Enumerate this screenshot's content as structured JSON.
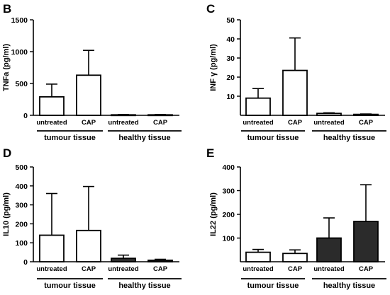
{
  "chart_data": [
    {
      "panel": "B",
      "type": "bar",
      "ylabel": "TNFa (pg/ml)",
      "ylim": [
        0,
        1500
      ],
      "yticks": [
        0,
        500,
        1000,
        1500
      ],
      "categories": [
        "untreated",
        "CAP",
        "untreated",
        "CAP"
      ],
      "values": [
        290,
        630,
        8,
        8
      ],
      "errors": [
        200,
        390,
        4,
        4
      ],
      "fills": [
        "#ffffff",
        "#ffffff",
        "#ffffff",
        "#ffffff"
      ],
      "groups": [
        "tumour tissue",
        "healthy tissue"
      ]
    },
    {
      "panel": "C",
      "type": "bar",
      "ylabel": "INF γ (pg/ml)",
      "ylim": [
        0,
        50
      ],
      "yticks": [
        10,
        20,
        30,
        40,
        50
      ],
      "categories": [
        "untreated",
        "CAP",
        "untreated",
        "CAP"
      ],
      "values": [
        9,
        23.5,
        1,
        0.5
      ],
      "errors": [
        5,
        17,
        0.3,
        0.2
      ],
      "fills": [
        "#ffffff",
        "#ffffff",
        "#ffffff",
        "#ffffff"
      ],
      "groups": [
        "tumour tissue",
        "healthy tissue"
      ]
    },
    {
      "panel": "D",
      "type": "bar",
      "ylabel": "IL10 (pg/ml)",
      "ylim": [
        0,
        500
      ],
      "yticks": [
        0,
        100,
        200,
        300,
        400,
        500
      ],
      "categories": [
        "untreated",
        "CAP",
        "untreated",
        "CAP"
      ],
      "values": [
        140,
        165,
        18,
        8
      ],
      "errors": [
        220,
        232,
        17,
        5
      ],
      "fills": [
        "#ffffff",
        "#ffffff",
        "#2b2b2b",
        "#2b2b2b"
      ],
      "groups": [
        "tumour tissue",
        "healthy tissue"
      ]
    },
    {
      "panel": "E",
      "type": "bar",
      "ylabel": "IL22 (pg/ml)",
      "ylim": [
        0,
        400
      ],
      "yticks": [
        100,
        200,
        300,
        400
      ],
      "categories": [
        "untreated",
        "CAP",
        "untreated",
        "CAP"
      ],
      "values": [
        40,
        35,
        100,
        170
      ],
      "errors": [
        12,
        15,
        85,
        155
      ],
      "fills": [
        "#ffffff",
        "#ffffff",
        "#2b2b2b",
        "#2b2b2b"
      ],
      "groups": [
        "tumour tissue",
        "healthy tissue"
      ]
    }
  ]
}
